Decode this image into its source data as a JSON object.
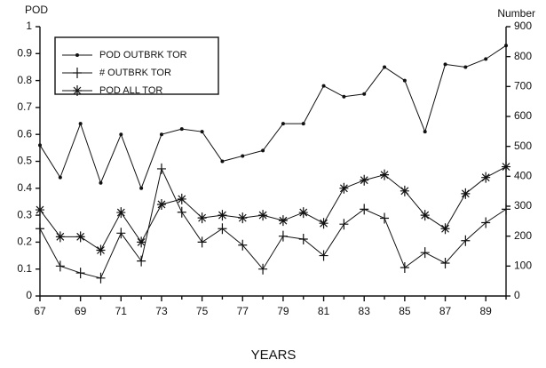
{
  "chart_data": {
    "type": "line",
    "y_label": "POD",
    "y2_label": "Number",
    "x_label": "YEARS",
    "x": [
      67,
      68,
      69,
      70,
      71,
      72,
      73,
      74,
      75,
      76,
      77,
      78,
      79,
      80,
      81,
      82,
      83,
      84,
      85,
      86,
      87,
      88,
      89,
      90
    ],
    "xlim": [
      67,
      90
    ],
    "xticks": [
      67,
      69,
      71,
      73,
      75,
      77,
      79,
      81,
      83,
      85,
      87,
      89
    ],
    "xminorticks": [
      68,
      70,
      72,
      74,
      76,
      78,
      80,
      82,
      84,
      86,
      88,
      90
    ],
    "ylim": [
      0,
      1
    ],
    "yticks": [
      0,
      0.1,
      0.2,
      0.3,
      0.4,
      0.5,
      0.6,
      0.7,
      0.8,
      0.9,
      1
    ],
    "y2lim": [
      0,
      900
    ],
    "y2ticks": [
      0,
      100,
      200,
      300,
      400,
      500,
      600,
      700,
      800,
      900
    ],
    "legend": "upper left",
    "series": [
      {
        "name": "POD OUTBRK TOR",
        "color": "#111111",
        "marker": "dot",
        "values": [
          0.56,
          0.44,
          0.64,
          0.42,
          0.6,
          0.4,
          0.6,
          0.62,
          0.61,
          0.5,
          0.52,
          0.54,
          0.64,
          0.64,
          0.78,
          0.74,
          0.75,
          0.85,
          0.8,
          0.61,
          0.86,
          0.85,
          0.88,
          0.93
        ]
      },
      {
        "name": "# OUTBRK TOR",
        "color": "#111111",
        "marker": "plus",
        "axis": "y2",
        "values": [
          225,
          100,
          77,
          60,
          210,
          117,
          425,
          280,
          180,
          225,
          170,
          90,
          200,
          190,
          135,
          240,
          290,
          260,
          95,
          145,
          110,
          185,
          245,
          290
        ]
      },
      {
        "name": "POD ALL TOR",
        "color": "#111111",
        "marker": "star",
        "values": [
          0.32,
          0.22,
          0.22,
          0.17,
          0.31,
          0.2,
          0.34,
          0.36,
          0.29,
          0.3,
          0.29,
          0.3,
          0.28,
          0.31,
          0.27,
          0.4,
          0.43,
          0.45,
          0.39,
          0.3,
          0.25,
          0.38,
          0.44,
          0.48
        ]
      }
    ]
  }
}
